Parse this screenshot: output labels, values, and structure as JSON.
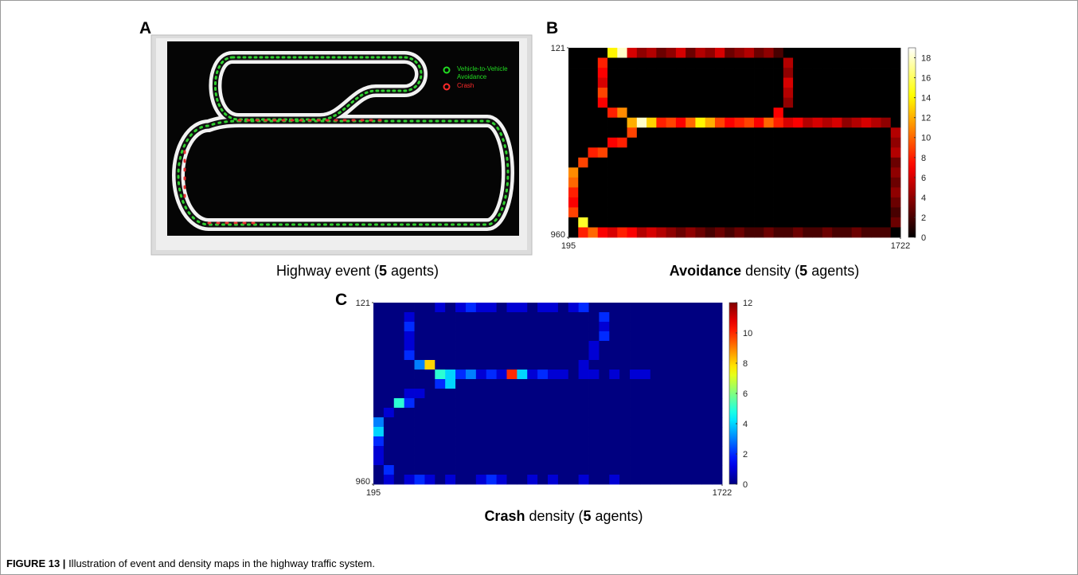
{
  "chart_data": [
    {
      "type": "image",
      "panel": "A",
      "legend": [
        {
          "name_lines": [
            "Vehicle-to-Vehicle",
            "Avoidance"
          ],
          "color": "#22dd22"
        },
        {
          "name_lines": [
            "Crash"
          ],
          "color": "#ff2a2a"
        }
      ],
      "caption": [
        {
          "text": "Highway event (",
          "bold": false
        },
        {
          "text": "5",
          "bold": true
        },
        {
          "text": " agents)",
          "bold": false
        }
      ]
    },
    {
      "type": "heatmap",
      "panel": "B",
      "colormap": "hot",
      "xlim": [
        195,
        1722
      ],
      "ylim": [
        121,
        960
      ],
      "y_reversed": true,
      "xticks": [
        195,
        1722
      ],
      "yticks": [
        121,
        960
      ],
      "zlim": [
        0,
        19
      ],
      "zticks": [
        0,
        2,
        4,
        6,
        8,
        10,
        12,
        14,
        16,
        18
      ],
      "caption": [
        {
          "text": "Avoidance",
          "bold": true
        },
        {
          "text": " density (",
          "bold": false
        },
        {
          "text": "5",
          "bold": true
        },
        {
          "text": " agents)",
          "bold": false
        }
      ],
      "z": [
        [
          0,
          0,
          0,
          0,
          14,
          18,
          6,
          4,
          5,
          3,
          4,
          6,
          3,
          5,
          4,
          6,
          3,
          4,
          5,
          3,
          4,
          2,
          0,
          0,
          0,
          0,
          0,
          0,
          0,
          0,
          0,
          0,
          0,
          0
        ],
        [
          0,
          0,
          0,
          8,
          0,
          0,
          0,
          0,
          0,
          0,
          0,
          0,
          0,
          0,
          0,
          0,
          0,
          0,
          0,
          0,
          0,
          0,
          5,
          0,
          0,
          0,
          0,
          0,
          0,
          0,
          0,
          0,
          0,
          0
        ],
        [
          0,
          0,
          0,
          7,
          0,
          0,
          0,
          0,
          0,
          0,
          0,
          0,
          0,
          0,
          0,
          0,
          0,
          0,
          0,
          0,
          0,
          0,
          4,
          0,
          0,
          0,
          0,
          0,
          0,
          0,
          0,
          0,
          0,
          0
        ],
        [
          0,
          0,
          0,
          6,
          0,
          0,
          0,
          0,
          0,
          0,
          0,
          0,
          0,
          0,
          0,
          0,
          0,
          0,
          0,
          0,
          0,
          0,
          6,
          0,
          0,
          0,
          0,
          0,
          0,
          0,
          0,
          0,
          0,
          0
        ],
        [
          0,
          0,
          0,
          9,
          0,
          0,
          0,
          0,
          0,
          0,
          0,
          0,
          0,
          0,
          0,
          0,
          0,
          0,
          0,
          0,
          0,
          0,
          5,
          0,
          0,
          0,
          0,
          0,
          0,
          0,
          0,
          0,
          0,
          0
        ],
        [
          0,
          0,
          0,
          7,
          0,
          0,
          0,
          0,
          0,
          0,
          0,
          0,
          0,
          0,
          0,
          0,
          0,
          0,
          0,
          0,
          0,
          0,
          4,
          0,
          0,
          0,
          0,
          0,
          0,
          0,
          0,
          0,
          0,
          0
        ],
        [
          0,
          0,
          0,
          0,
          8,
          11,
          0,
          0,
          0,
          0,
          0,
          0,
          0,
          0,
          0,
          0,
          0,
          0,
          0,
          0,
          0,
          7,
          0,
          0,
          0,
          0,
          0,
          0,
          0,
          0,
          0,
          0,
          0,
          0
        ],
        [
          0,
          0,
          0,
          0,
          0,
          0,
          12,
          18,
          13,
          8,
          9,
          7,
          10,
          14,
          12,
          9,
          7,
          8,
          9,
          7,
          10,
          8,
          6,
          7,
          5,
          6,
          5,
          6,
          4,
          5,
          6,
          5,
          4,
          0
        ],
        [
          0,
          0,
          0,
          0,
          0,
          0,
          9,
          0,
          0,
          0,
          0,
          0,
          0,
          0,
          0,
          0,
          0,
          0,
          0,
          0,
          0,
          0,
          0,
          0,
          0,
          0,
          0,
          0,
          0,
          0,
          0,
          0,
          0,
          5
        ],
        [
          0,
          0,
          0,
          0,
          7,
          8,
          0,
          0,
          0,
          0,
          0,
          0,
          0,
          0,
          0,
          0,
          0,
          0,
          0,
          0,
          0,
          0,
          0,
          0,
          0,
          0,
          0,
          0,
          0,
          0,
          0,
          0,
          0,
          4
        ],
        [
          0,
          0,
          8,
          9,
          0,
          0,
          0,
          0,
          0,
          0,
          0,
          0,
          0,
          0,
          0,
          0,
          0,
          0,
          0,
          0,
          0,
          0,
          0,
          0,
          0,
          0,
          0,
          0,
          0,
          0,
          0,
          0,
          0,
          5
        ],
        [
          0,
          9,
          0,
          0,
          0,
          0,
          0,
          0,
          0,
          0,
          0,
          0,
          0,
          0,
          0,
          0,
          0,
          0,
          0,
          0,
          0,
          0,
          0,
          0,
          0,
          0,
          0,
          0,
          0,
          0,
          0,
          0,
          0,
          3
        ],
        [
          11,
          0,
          0,
          0,
          0,
          0,
          0,
          0,
          0,
          0,
          0,
          0,
          0,
          0,
          0,
          0,
          0,
          0,
          0,
          0,
          0,
          0,
          0,
          0,
          0,
          0,
          0,
          0,
          0,
          0,
          0,
          0,
          0,
          4
        ],
        [
          10,
          0,
          0,
          0,
          0,
          0,
          0,
          0,
          0,
          0,
          0,
          0,
          0,
          0,
          0,
          0,
          0,
          0,
          0,
          0,
          0,
          0,
          0,
          0,
          0,
          0,
          0,
          0,
          0,
          0,
          0,
          0,
          0,
          3
        ],
        [
          8,
          0,
          0,
          0,
          0,
          0,
          0,
          0,
          0,
          0,
          0,
          0,
          0,
          0,
          0,
          0,
          0,
          0,
          0,
          0,
          0,
          0,
          0,
          0,
          0,
          0,
          0,
          0,
          0,
          0,
          0,
          0,
          0,
          4
        ],
        [
          7,
          0,
          0,
          0,
          0,
          0,
          0,
          0,
          0,
          0,
          0,
          0,
          0,
          0,
          0,
          0,
          0,
          0,
          0,
          0,
          0,
          0,
          0,
          0,
          0,
          0,
          0,
          0,
          0,
          0,
          0,
          0,
          0,
          3
        ],
        [
          9,
          0,
          0,
          0,
          0,
          0,
          0,
          0,
          0,
          0,
          0,
          0,
          0,
          0,
          0,
          0,
          0,
          0,
          0,
          0,
          0,
          0,
          0,
          0,
          0,
          0,
          0,
          0,
          0,
          0,
          0,
          0,
          0,
          2
        ],
        [
          0,
          15,
          0,
          0,
          0,
          0,
          0,
          0,
          0,
          0,
          0,
          0,
          0,
          0,
          0,
          0,
          0,
          0,
          0,
          0,
          0,
          0,
          0,
          0,
          0,
          0,
          0,
          0,
          0,
          0,
          0,
          0,
          0,
          3
        ],
        [
          0,
          8,
          10,
          7,
          6,
          8,
          7,
          5,
          6,
          5,
          4,
          3,
          4,
          3,
          2,
          3,
          2,
          3,
          2,
          2,
          3,
          2,
          2,
          3,
          2,
          2,
          3,
          2,
          2,
          3,
          2,
          2,
          2,
          0
        ]
      ]
    },
    {
      "type": "heatmap",
      "panel": "C",
      "colormap": "jet",
      "xlim": [
        195,
        1722
      ],
      "ylim": [
        121,
        960
      ],
      "y_reversed": true,
      "xticks": [
        195,
        1722
      ],
      "yticks": [
        121,
        960
      ],
      "zlim": [
        0,
        12
      ],
      "zticks": [
        0,
        2,
        4,
        6,
        8,
        10,
        12
      ],
      "caption": [
        {
          "text": "Crash",
          "bold": true
        },
        {
          "text": " density (",
          "bold": false
        },
        {
          "text": "5",
          "bold": true
        },
        {
          "text": " agents)",
          "bold": false
        }
      ],
      "z": [
        [
          0,
          0,
          0,
          0,
          0,
          0,
          1,
          0,
          1,
          2,
          1,
          1,
          0,
          1,
          1,
          0,
          1,
          1,
          0,
          1,
          2,
          0,
          0,
          0,
          0,
          0,
          0,
          0,
          0,
          0,
          0,
          0,
          0,
          0
        ],
        [
          0,
          0,
          0,
          1,
          0,
          0,
          0,
          0,
          0,
          0,
          0,
          0,
          0,
          0,
          0,
          0,
          0,
          0,
          0,
          0,
          0,
          0,
          2,
          0,
          0,
          0,
          0,
          0,
          0,
          0,
          0,
          0,
          0,
          0
        ],
        [
          0,
          0,
          0,
          2,
          0,
          0,
          0,
          0,
          0,
          0,
          0,
          0,
          0,
          0,
          0,
          0,
          0,
          0,
          0,
          0,
          0,
          0,
          1,
          0,
          0,
          0,
          0,
          0,
          0,
          0,
          0,
          0,
          0,
          0
        ],
        [
          0,
          0,
          0,
          1,
          0,
          0,
          0,
          0,
          0,
          0,
          0,
          0,
          0,
          0,
          0,
          0,
          0,
          0,
          0,
          0,
          0,
          0,
          2,
          0,
          0,
          0,
          0,
          0,
          0,
          0,
          0,
          0,
          0,
          0
        ],
        [
          0,
          0,
          0,
          1,
          0,
          0,
          0,
          0,
          0,
          0,
          0,
          0,
          0,
          0,
          0,
          0,
          0,
          0,
          0,
          0,
          0,
          1,
          0,
          0,
          0,
          0,
          0,
          0,
          0,
          0,
          0,
          0,
          0,
          0
        ],
        [
          0,
          0,
          0,
          2,
          0,
          0,
          0,
          0,
          0,
          0,
          0,
          0,
          0,
          0,
          0,
          0,
          0,
          0,
          0,
          0,
          0,
          1,
          0,
          0,
          0,
          0,
          0,
          0,
          0,
          0,
          0,
          0,
          0,
          0
        ],
        [
          0,
          0,
          0,
          0,
          3,
          8,
          0,
          0,
          0,
          0,
          0,
          0,
          0,
          0,
          0,
          0,
          0,
          0,
          0,
          0,
          1,
          0,
          0,
          0,
          0,
          0,
          0,
          0,
          0,
          0,
          0,
          0,
          0,
          0
        ],
        [
          0,
          0,
          0,
          0,
          0,
          0,
          5,
          4,
          2,
          3,
          1,
          2,
          1,
          10,
          4,
          1,
          2,
          1,
          1,
          0,
          1,
          1,
          0,
          1,
          0,
          1,
          1,
          0,
          0,
          0,
          0,
          0,
          0,
          0
        ],
        [
          0,
          0,
          0,
          0,
          0,
          0,
          2,
          4,
          0,
          0,
          0,
          0,
          0,
          0,
          0,
          0,
          0,
          0,
          0,
          0,
          0,
          0,
          0,
          0,
          0,
          0,
          0,
          0,
          0,
          0,
          0,
          0,
          0,
          0
        ],
        [
          0,
          0,
          0,
          1,
          1,
          0,
          0,
          0,
          0,
          0,
          0,
          0,
          0,
          0,
          0,
          0,
          0,
          0,
          0,
          0,
          0,
          0,
          0,
          0,
          0,
          0,
          0,
          0,
          0,
          0,
          0,
          0,
          0,
          0
        ],
        [
          0,
          0,
          5,
          2,
          0,
          0,
          0,
          0,
          0,
          0,
          0,
          0,
          0,
          0,
          0,
          0,
          0,
          0,
          0,
          0,
          0,
          0,
          0,
          0,
          0,
          0,
          0,
          0,
          0,
          0,
          0,
          0,
          0,
          0
        ],
        [
          0,
          1,
          0,
          0,
          0,
          0,
          0,
          0,
          0,
          0,
          0,
          0,
          0,
          0,
          0,
          0,
          0,
          0,
          0,
          0,
          0,
          0,
          0,
          0,
          0,
          0,
          0,
          0,
          0,
          0,
          0,
          0,
          0,
          0
        ],
        [
          3,
          0,
          0,
          0,
          0,
          0,
          0,
          0,
          0,
          0,
          0,
          0,
          0,
          0,
          0,
          0,
          0,
          0,
          0,
          0,
          0,
          0,
          0,
          0,
          0,
          0,
          0,
          0,
          0,
          0,
          0,
          0,
          0,
          0
        ],
        [
          4,
          0,
          0,
          0,
          0,
          0,
          0,
          0,
          0,
          0,
          0,
          0,
          0,
          0,
          0,
          0,
          0,
          0,
          0,
          0,
          0,
          0,
          0,
          0,
          0,
          0,
          0,
          0,
          0,
          0,
          0,
          0,
          0,
          0
        ],
        [
          2,
          0,
          0,
          0,
          0,
          0,
          0,
          0,
          0,
          0,
          0,
          0,
          0,
          0,
          0,
          0,
          0,
          0,
          0,
          0,
          0,
          0,
          0,
          0,
          0,
          0,
          0,
          0,
          0,
          0,
          0,
          0,
          0,
          0
        ],
        [
          1,
          0,
          0,
          0,
          0,
          0,
          0,
          0,
          0,
          0,
          0,
          0,
          0,
          0,
          0,
          0,
          0,
          0,
          0,
          0,
          0,
          0,
          0,
          0,
          0,
          0,
          0,
          0,
          0,
          0,
          0,
          0,
          0,
          0
        ],
        [
          1,
          0,
          0,
          0,
          0,
          0,
          0,
          0,
          0,
          0,
          0,
          0,
          0,
          0,
          0,
          0,
          0,
          0,
          0,
          0,
          0,
          0,
          0,
          0,
          0,
          0,
          0,
          0,
          0,
          0,
          0,
          0,
          0,
          0
        ],
        [
          0,
          2,
          0,
          0,
          0,
          0,
          0,
          0,
          0,
          0,
          0,
          0,
          0,
          0,
          0,
          0,
          0,
          0,
          0,
          0,
          0,
          0,
          0,
          0,
          0,
          0,
          0,
          0,
          0,
          0,
          0,
          0,
          0,
          0
        ],
        [
          0,
          1,
          0,
          1,
          2,
          1,
          0,
          1,
          0,
          0,
          1,
          2,
          1,
          0,
          0,
          1,
          0,
          1,
          0,
          0,
          1,
          0,
          0,
          1,
          0,
          0,
          0,
          0,
          0,
          0,
          0,
          0,
          0,
          0
        ]
      ]
    }
  ],
  "figure_caption": {
    "label": "FIGURE 13 |",
    "text": "Illustration of event and density maps in the highway traffic system."
  }
}
